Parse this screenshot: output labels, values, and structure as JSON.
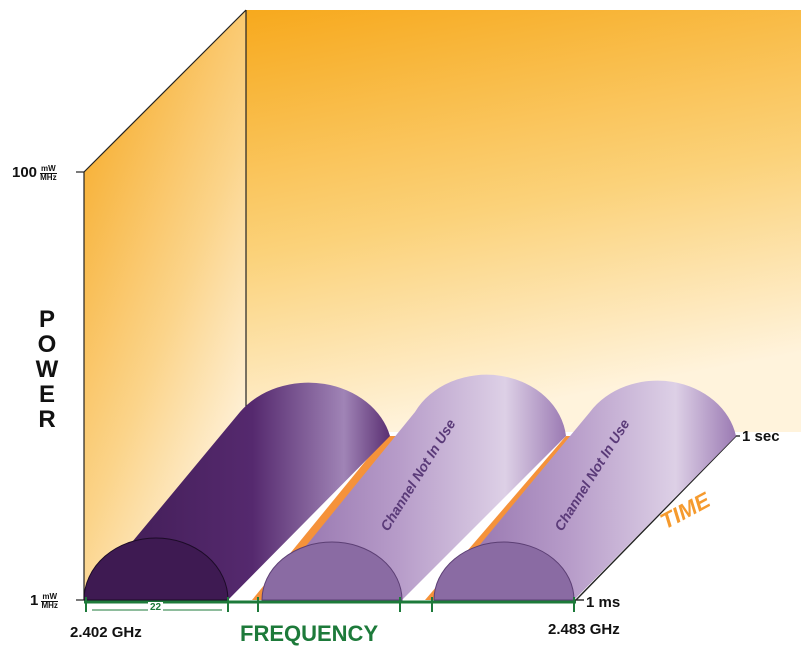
{
  "axes": {
    "power_label": "POWER",
    "y_max_value": "100",
    "y_min_value": "1",
    "unit_numerator": "mW",
    "unit_denominator": "MHz",
    "frequency_label": "FREQUENCY",
    "x_min": "2.402 GHz",
    "x_max": "2.483 GHz",
    "time_label": "TIME",
    "time_min": "1 ms",
    "time_max": "1 sec",
    "channel_width": "22"
  },
  "channels": [
    {
      "label": "",
      "active": true
    },
    {
      "label": "Channel Not In Use",
      "active": false
    },
    {
      "label": "Channel Not In Use",
      "active": false
    }
  ],
  "colors": {
    "wall": "#f7b128",
    "active_channel": "#47215e",
    "inactive_channel": "#b79cc9",
    "floor_gap": "#f5923a",
    "frequency_axis": "#1d7a3a"
  }
}
